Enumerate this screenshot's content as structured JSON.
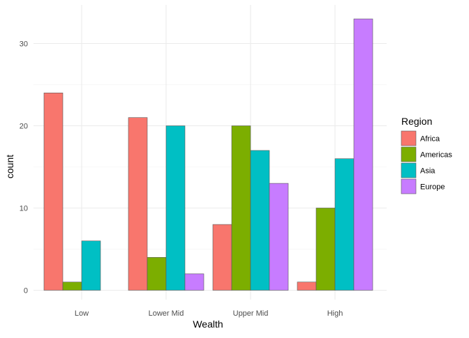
{
  "chart_data": {
    "type": "bar",
    "title": "",
    "xlabel": "Wealth",
    "ylabel": "count",
    "categories": [
      "Low",
      "Lower Mid",
      "Upper Mid",
      "High"
    ],
    "ylim": [
      0,
      35
    ],
    "yticks": [
      0,
      10,
      20,
      30
    ],
    "grid": true,
    "legend": {
      "title": "Region",
      "position": "right"
    },
    "series": [
      {
        "name": "Africa",
        "color": "#F8766D",
        "values": [
          24,
          21,
          8,
          1
        ]
      },
      {
        "name": "Americas",
        "color": "#7CAE00",
        "values": [
          1,
          4,
          20,
          10
        ]
      },
      {
        "name": "Asia",
        "color": "#00BFC4",
        "values": [
          6,
          20,
          17,
          16
        ]
      },
      {
        "name": "Europe",
        "color": "#C77CFF",
        "values": [
          null,
          2,
          13,
          33
        ]
      }
    ]
  }
}
